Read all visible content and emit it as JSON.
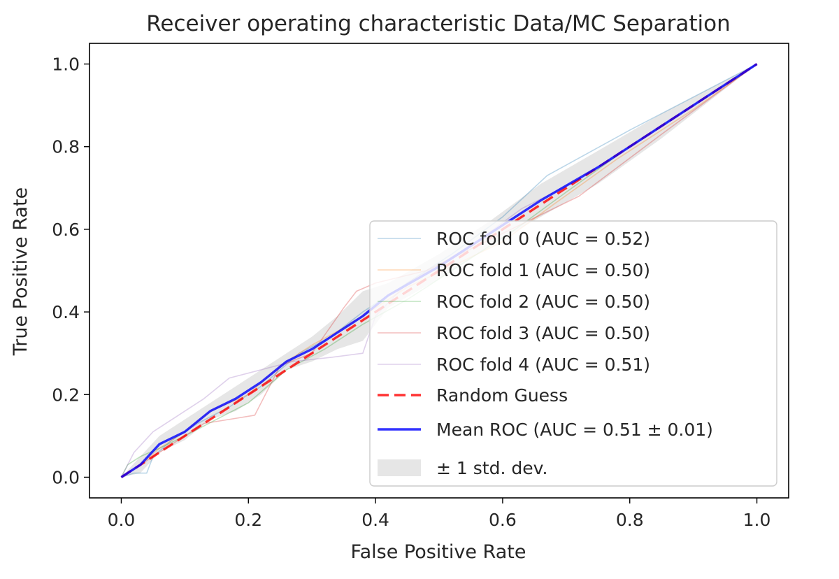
{
  "chart_data": {
    "type": "line",
    "title": "Receiver operating characteristic Data/MC Separation",
    "xlabel": "False Positive Rate",
    "ylabel": "True Positive Rate",
    "xlim": [
      -0.05,
      1.05
    ],
    "ylim": [
      -0.05,
      1.05
    ],
    "xticks": [
      0.0,
      0.2,
      0.4,
      0.6,
      0.8,
      1.0
    ],
    "yticks": [
      0.0,
      0.2,
      0.4,
      0.6,
      0.8,
      1.0
    ],
    "xtick_labels": [
      "0.0",
      "0.2",
      "0.4",
      "0.6",
      "0.8",
      "1.0"
    ],
    "ytick_labels": [
      "0.0",
      "0.2",
      "0.4",
      "0.6",
      "0.8",
      "1.0"
    ],
    "grid": false,
    "legend_position": "lower right",
    "series": [
      {
        "name": "ROC fold 0 (AUC = 0.52)",
        "color": "#1f77b4",
        "opacity": 0.3,
        "x": [
          0,
          0.02,
          0.04,
          0.05,
          0.08,
          0.12,
          0.17,
          0.22,
          0.28,
          0.33,
          0.38,
          0.45,
          0.52,
          0.6,
          0.67,
          0.8,
          1.0
        ],
        "y": [
          0,
          0.01,
          0.01,
          0.05,
          0.09,
          0.13,
          0.17,
          0.22,
          0.3,
          0.34,
          0.4,
          0.47,
          0.54,
          0.63,
          0.73,
          0.84,
          1.0
        ]
      },
      {
        "name": "ROC fold 1 (AUC = 0.50)",
        "color": "#ff7f0e",
        "opacity": 0.3,
        "x": [
          0,
          0.03,
          0.06,
          0.1,
          0.14,
          0.2,
          0.25,
          0.3,
          0.36,
          0.4,
          0.45,
          0.52,
          0.6,
          0.68,
          0.78,
          0.9,
          1.0
        ],
        "y": [
          0,
          0.03,
          0.07,
          0.11,
          0.16,
          0.2,
          0.27,
          0.32,
          0.37,
          0.41,
          0.46,
          0.51,
          0.57,
          0.66,
          0.77,
          0.89,
          1.0
        ]
      },
      {
        "name": "ROC fold 2 (AUC = 0.50)",
        "color": "#2ca02c",
        "opacity": 0.3,
        "x": [
          0,
          0.01,
          0.03,
          0.06,
          0.1,
          0.15,
          0.2,
          0.26,
          0.32,
          0.38,
          0.45,
          0.55,
          0.62,
          0.7,
          0.8,
          0.9,
          1.0
        ],
        "y": [
          0,
          0.03,
          0.05,
          0.07,
          0.1,
          0.14,
          0.18,
          0.26,
          0.31,
          0.37,
          0.43,
          0.53,
          0.6,
          0.69,
          0.8,
          0.9,
          1.0
        ]
      },
      {
        "name": "ROC fold 3 (AUC = 0.50)",
        "color": "#d62728",
        "opacity": 0.3,
        "x": [
          0,
          0.04,
          0.08,
          0.13,
          0.17,
          0.21,
          0.25,
          0.3,
          0.35,
          0.37,
          0.4,
          0.48,
          0.56,
          0.64,
          0.72,
          0.85,
          1.0
        ],
        "y": [
          0,
          0.04,
          0.08,
          0.13,
          0.14,
          0.15,
          0.27,
          0.3,
          0.41,
          0.45,
          0.47,
          0.5,
          0.56,
          0.62,
          0.68,
          0.83,
          1.0
        ]
      },
      {
        "name": "ROC fold 4 (AUC = 0.51)",
        "color": "#9467bd",
        "opacity": 0.3,
        "x": [
          0,
          0.02,
          0.05,
          0.09,
          0.13,
          0.17,
          0.22,
          0.27,
          0.33,
          0.38,
          0.4,
          0.45,
          0.55,
          0.63,
          0.72,
          0.86,
          1.0
        ],
        "y": [
          0,
          0.06,
          0.11,
          0.15,
          0.19,
          0.24,
          0.26,
          0.28,
          0.29,
          0.3,
          0.39,
          0.47,
          0.56,
          0.65,
          0.72,
          0.86,
          1.0
        ]
      },
      {
        "name": "Random Guess",
        "color": "#ff0000",
        "opacity": 0.8,
        "dash": true,
        "x": [
          0,
          1
        ],
        "y": [
          0,
          1
        ]
      },
      {
        "name": "Mean ROC (AUC = 0.51 ± 0.01)",
        "color": "#0000ff",
        "opacity": 0.8,
        "x": [
          0,
          0.03,
          0.06,
          0.1,
          0.14,
          0.18,
          0.22,
          0.26,
          0.3,
          0.34,
          0.38,
          0.42,
          0.5,
          0.58,
          0.66,
          0.75,
          0.85,
          1.0
        ],
        "y": [
          0,
          0.03,
          0.08,
          0.11,
          0.16,
          0.19,
          0.23,
          0.28,
          0.31,
          0.35,
          0.39,
          0.44,
          0.51,
          0.59,
          0.67,
          0.75,
          0.85,
          1.0
        ]
      }
    ],
    "band": {
      "name": "± 1 std. dev.",
      "color": "#808080",
      "opacity": 0.2,
      "x": [
        0,
        0.03,
        0.06,
        0.1,
        0.14,
        0.18,
        0.22,
        0.26,
        0.3,
        0.34,
        0.38,
        0.42,
        0.5,
        0.58,
        0.66,
        0.75,
        0.85,
        1.0
      ],
      "y_upper": [
        0,
        0.05,
        0.1,
        0.14,
        0.18,
        0.22,
        0.26,
        0.3,
        0.34,
        0.39,
        0.45,
        0.47,
        0.54,
        0.62,
        0.71,
        0.79,
        0.88,
        1.0
      ],
      "y_lower": [
        0,
        0.01,
        0.06,
        0.09,
        0.14,
        0.16,
        0.2,
        0.26,
        0.28,
        0.31,
        0.33,
        0.41,
        0.48,
        0.56,
        0.63,
        0.71,
        0.82,
        1.0
      ]
    }
  }
}
